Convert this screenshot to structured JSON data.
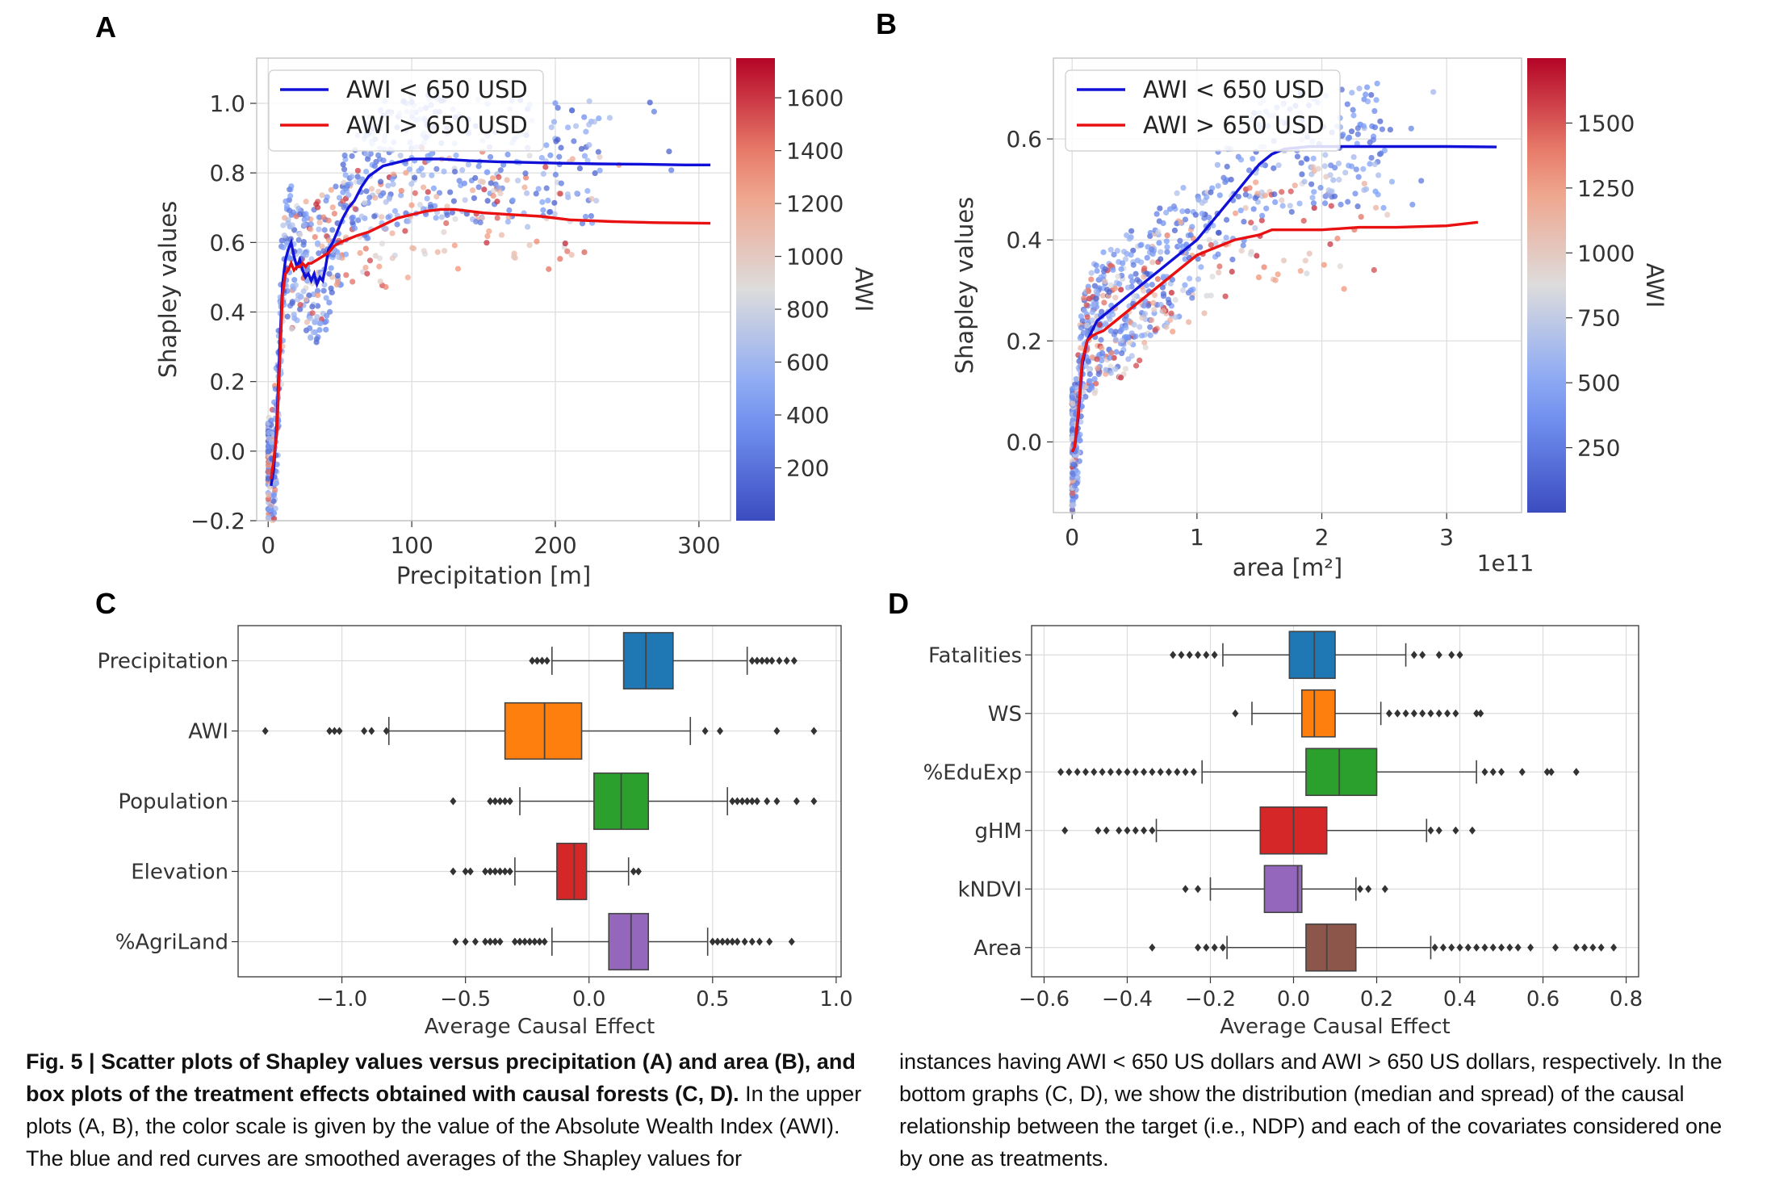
{
  "panels": {
    "A": {
      "letter": "A",
      "chart_data": {
        "type": "scatter",
        "xlabel": "Precipitation [m]",
        "ylabel": "Shapley values",
        "xlim": [
          -8,
          322
        ],
        "ylim": [
          -0.2,
          1.13
        ],
        "xticks": [
          0,
          100,
          200,
          300
        ],
        "xtick_labels": [
          "0",
          "100",
          "200",
          "300"
        ],
        "yticks": [
          -0.2,
          0.0,
          0.2,
          0.4,
          0.6,
          0.8,
          1.0
        ],
        "ytick_labels": [
          "−0.2",
          "0.0",
          "0.2",
          "0.4",
          "0.6",
          "0.8",
          "1.0"
        ],
        "grid": true,
        "legend_position": "top-left",
        "series": [
          {
            "name": "AWI < 650 USD",
            "color": "#1010d8",
            "x": [
              2,
              4,
              6,
              8,
              10,
              12,
              14,
              16,
              18,
              20,
              22,
              24,
              26,
              28,
              30,
              32,
              34,
              36,
              38,
              40,
              42,
              45,
              48,
              52,
              56,
              60,
              65,
              70,
              80,
              90,
              100,
              110,
              120,
              140,
              160,
              180,
              200,
              230,
              260,
              290,
              308
            ],
            "y": [
              -0.1,
              -0.05,
              0.08,
              0.3,
              0.48,
              0.55,
              0.58,
              0.6,
              0.56,
              0.53,
              0.55,
              0.52,
              0.5,
              0.51,
              0.49,
              0.51,
              0.48,
              0.5,
              0.49,
              0.53,
              0.58,
              0.6,
              0.63,
              0.67,
              0.7,
              0.72,
              0.76,
              0.79,
              0.82,
              0.83,
              0.84,
              0.84,
              0.84,
              0.835,
              0.832,
              0.83,
              0.828,
              0.826,
              0.825,
              0.823,
              0.823
            ]
          },
          {
            "name": "AWI > 650 USD",
            "color": "#e81010",
            "x": [
              2,
              4,
              6,
              8,
              10,
              12,
              14,
              16,
              18,
              20,
              22,
              24,
              26,
              28,
              30,
              34,
              38,
              42,
              46,
              50,
              56,
              62,
              70,
              80,
              90,
              100,
              110,
              120,
              130,
              140,
              150,
              170,
              190,
              210,
              240,
              270,
              308
            ],
            "y": [
              -0.08,
              -0.02,
              0.05,
              0.25,
              0.45,
              0.51,
              0.52,
              0.54,
              0.52,
              0.53,
              0.53,
              0.54,
              0.53,
              0.54,
              0.54,
              0.55,
              0.56,
              0.57,
              0.59,
              0.6,
              0.61,
              0.62,
              0.63,
              0.65,
              0.67,
              0.68,
              0.69,
              0.695,
              0.695,
              0.69,
              0.685,
              0.68,
              0.675,
              0.665,
              0.66,
              0.657,
              0.655
            ]
          }
        ],
        "colorbar": {
          "label": "AWI",
          "ticks": [
            200,
            400,
            600,
            800,
            1000,
            1200,
            1400,
            1600
          ],
          "tick_labels": [
            "200",
            "400",
            "600",
            "800",
            "1000",
            "1200",
            "1400",
            "1600"
          ],
          "range": [
            0,
            1750
          ]
        }
      }
    },
    "B": {
      "letter": "B",
      "chart_data": {
        "type": "scatter",
        "xlabel": "area [m²]",
        "ylabel": "Shapley values",
        "offset_label": "1e11",
        "xlim": [
          -0.15,
          3.6
        ],
        "ylim": [
          -0.14,
          0.76
        ],
        "xticks": [
          0,
          1,
          2,
          3
        ],
        "xtick_labels": [
          "0",
          "1",
          "2",
          "3"
        ],
        "yticks": [
          0.0,
          0.2,
          0.4,
          0.6
        ],
        "ytick_labels": [
          "0.0",
          "0.2",
          "0.4",
          "0.6"
        ],
        "grid": true,
        "legend_position": "top-left",
        "series": [
          {
            "name": "AWI < 650 USD",
            "color": "#1010d8",
            "x": [
              0.0,
              0.02,
              0.05,
              0.08,
              0.12,
              0.16,
              0.2,
              0.25,
              0.3,
              0.35,
              0.4,
              0.45,
              0.5,
              0.6,
              0.7,
              0.8,
              0.9,
              1.0,
              1.1,
              1.2,
              1.3,
              1.4,
              1.5,
              1.6,
              1.7,
              1.9,
              2.2,
              2.6,
              3.0,
              3.4
            ],
            "y": [
              -0.02,
              -0.01,
              0.05,
              0.15,
              0.2,
              0.22,
              0.24,
              0.25,
              0.26,
              0.27,
              0.28,
              0.29,
              0.3,
              0.32,
              0.34,
              0.36,
              0.38,
              0.4,
              0.43,
              0.46,
              0.49,
              0.52,
              0.55,
              0.57,
              0.58,
              0.585,
              0.585,
              0.585,
              0.585,
              0.584
            ]
          },
          {
            "name": "AWI > 650 USD",
            "color": "#e81010",
            "x": [
              0.0,
              0.02,
              0.05,
              0.08,
              0.12,
              0.16,
              0.2,
              0.25,
              0.3,
              0.4,
              0.5,
              0.6,
              0.7,
              0.8,
              0.9,
              1.0,
              1.1,
              1.2,
              1.3,
              1.4,
              1.5,
              1.6,
              1.8,
              2.0,
              2.3,
              2.6,
              3.0,
              3.25
            ],
            "y": [
              -0.02,
              -0.01,
              0.06,
              0.16,
              0.2,
              0.21,
              0.215,
              0.22,
              0.23,
              0.25,
              0.27,
              0.29,
              0.31,
              0.33,
              0.35,
              0.37,
              0.38,
              0.39,
              0.4,
              0.405,
              0.41,
              0.42,
              0.42,
              0.42,
              0.425,
              0.425,
              0.428,
              0.435
            ]
          }
        ],
        "colorbar": {
          "label": "AWI",
          "ticks": [
            250,
            500,
            750,
            1000,
            1250,
            1500
          ],
          "tick_labels": [
            "250",
            "500",
            "750",
            "1000",
            "1250",
            "1500"
          ],
          "range": [
            0,
            1750
          ]
        }
      }
    },
    "C": {
      "letter": "C",
      "chart_data": {
        "type": "box",
        "xlabel": "Average Causal Effect",
        "xlim": [
          -1.42,
          1.02
        ],
        "xticks": [
          -1.0,
          -0.5,
          0.0,
          0.5,
          1.0
        ],
        "xtick_labels": [
          "−1.0",
          "−0.5",
          "0.0",
          "0.5",
          "1.0"
        ],
        "grid": true,
        "boxes": [
          {
            "label": "Precipitation",
            "color": "#1f77b4",
            "q1": 0.14,
            "median": 0.23,
            "q3": 0.34,
            "whisker_low": -0.15,
            "whisker_high": 0.64,
            "outliers": [
              -0.23,
              -0.21,
              -0.19,
              -0.17,
              0.66,
              0.68,
              0.7,
              0.72,
              0.74,
              0.77,
              0.8,
              0.83
            ]
          },
          {
            "label": "AWI",
            "color": "#ff7f0e",
            "q1": -0.34,
            "median": -0.18,
            "q3": -0.03,
            "whisker_low": -0.81,
            "whisker_high": 0.41,
            "outliers": [
              -1.31,
              -1.05,
              -1.03,
              -1.01,
              -0.91,
              -0.88,
              -0.82,
              0.47,
              0.53,
              0.76,
              0.91
            ]
          },
          {
            "label": "Population",
            "color": "#2ca02c",
            "q1": 0.02,
            "median": 0.13,
            "q3": 0.24,
            "whisker_low": -0.28,
            "whisker_high": 0.56,
            "outliers": [
              -0.55,
              -0.4,
              -0.38,
              -0.36,
              -0.34,
              -0.32,
              0.58,
              0.6,
              0.62,
              0.64,
              0.66,
              0.68,
              0.72,
              0.76,
              0.84,
              0.91
            ]
          },
          {
            "label": "Elevation",
            "color": "#d62728",
            "q1": -0.13,
            "median": -0.06,
            "q3": -0.01,
            "whisker_low": -0.3,
            "whisker_high": 0.16,
            "outliers": [
              -0.55,
              -0.5,
              -0.48,
              -0.42,
              -0.4,
              -0.38,
              -0.36,
              -0.34,
              -0.32,
              0.18,
              0.2
            ]
          },
          {
            "label": "%AgriLand",
            "color": "#9467bd",
            "q1": 0.08,
            "median": 0.17,
            "q3": 0.24,
            "whisker_low": -0.15,
            "whisker_high": 0.48,
            "outliers": [
              -0.54,
              -0.5,
              -0.46,
              -0.42,
              -0.4,
              -0.38,
              -0.36,
              -0.3,
              -0.28,
              -0.26,
              -0.24,
              -0.22,
              -0.2,
              -0.18,
              0.5,
              0.52,
              0.54,
              0.56,
              0.58,
              0.6,
              0.63,
              0.66,
              0.69,
              0.73,
              0.82
            ]
          }
        ]
      }
    },
    "D": {
      "letter": "D",
      "chart_data": {
        "type": "box",
        "xlabel": "Average Causal Effect",
        "xlim": [
          -0.63,
          0.83
        ],
        "xticks": [
          -0.6,
          -0.4,
          -0.2,
          0.0,
          0.2,
          0.4,
          0.6,
          0.8
        ],
        "xtick_labels": [
          "−0.6",
          "−0.4",
          "−0.2",
          "0.0",
          "0.2",
          "0.4",
          "0.6",
          "0.8"
        ],
        "grid": true,
        "boxes": [
          {
            "label": "Fatalities",
            "color": "#1f77b4",
            "q1": -0.01,
            "median": 0.05,
            "q3": 0.1,
            "whisker_low": -0.17,
            "whisker_high": 0.27,
            "outliers": [
              -0.29,
              -0.27,
              -0.25,
              -0.23,
              -0.21,
              -0.19,
              0.29,
              0.31,
              0.35,
              0.38,
              0.4
            ]
          },
          {
            "label": "WS",
            "color": "#ff7f0e",
            "q1": 0.02,
            "median": 0.05,
            "q3": 0.1,
            "whisker_low": -0.1,
            "whisker_high": 0.21,
            "outliers": [
              -0.14,
              0.23,
              0.25,
              0.27,
              0.29,
              0.31,
              0.33,
              0.35,
              0.37,
              0.39,
              0.44,
              0.45
            ]
          },
          {
            "label": "%EduExp",
            "color": "#2ca02c",
            "q1": 0.03,
            "median": 0.11,
            "q3": 0.2,
            "whisker_low": -0.22,
            "whisker_high": 0.44,
            "outliers": [
              -0.56,
              -0.54,
              -0.52,
              -0.5,
              -0.48,
              -0.46,
              -0.44,
              -0.42,
              -0.4,
              -0.38,
              -0.36,
              -0.34,
              -0.32,
              -0.3,
              -0.28,
              -0.26,
              -0.24,
              0.46,
              0.48,
              0.5,
              0.55,
              0.61,
              0.62,
              0.68
            ]
          },
          {
            "label": "gHM",
            "color": "#d62728",
            "q1": -0.08,
            "median": 0.0,
            "q3": 0.08,
            "whisker_low": -0.33,
            "whisker_high": 0.32,
            "outliers": [
              -0.55,
              -0.47,
              -0.45,
              -0.42,
              -0.4,
              -0.38,
              -0.36,
              -0.34,
              0.33,
              0.35,
              0.39,
              0.43
            ]
          },
          {
            "label": "kNDVI",
            "color": "#9467bd",
            "q1": -0.07,
            "median": 0.01,
            "q3": 0.02,
            "whisker_low": -0.2,
            "whisker_high": 0.15,
            "outliers": [
              -0.26,
              -0.23,
              0.16,
              0.18,
              0.22
            ]
          },
          {
            "label": "Area",
            "color": "#8c564b",
            "q1": 0.03,
            "median": 0.08,
            "q3": 0.15,
            "whisker_low": -0.16,
            "whisker_high": 0.33,
            "outliers": [
              -0.34,
              -0.23,
              -0.21,
              -0.19,
              -0.17,
              0.34,
              0.36,
              0.38,
              0.4,
              0.42,
              0.44,
              0.46,
              0.48,
              0.5,
              0.52,
              0.54,
              0.57,
              0.63,
              0.68,
              0.7,
              0.72,
              0.74,
              0.77
            ]
          }
        ]
      }
    }
  },
  "caption": {
    "left_bold": "Fig. 5 | Scatter plots of Shapley values versus precipitation (A) and area (B), and box plots of the treatment effects obtained with causal forests (C, D).",
    "left_text": " In the upper plots (A, B), the color scale is given by the value of the Absolute Wealth Index (AWI). The blue and red curves are smoothed averages of the Shapley values for",
    "right_text": "instances having AWI < 650 US dollars and AWI > 650 US dollars, respectively. In the bottom graphs (C, D), we show the distribution (median and spread) of the causal relationship between the target (i.e., NDP) and each of the covariates considered one by one as treatments."
  },
  "colors": {
    "low": "#3b4cc0",
    "mid": "#dddcdc",
    "high": "#b40426",
    "grid": "#dddddd",
    "box_edge": "#444444"
  }
}
